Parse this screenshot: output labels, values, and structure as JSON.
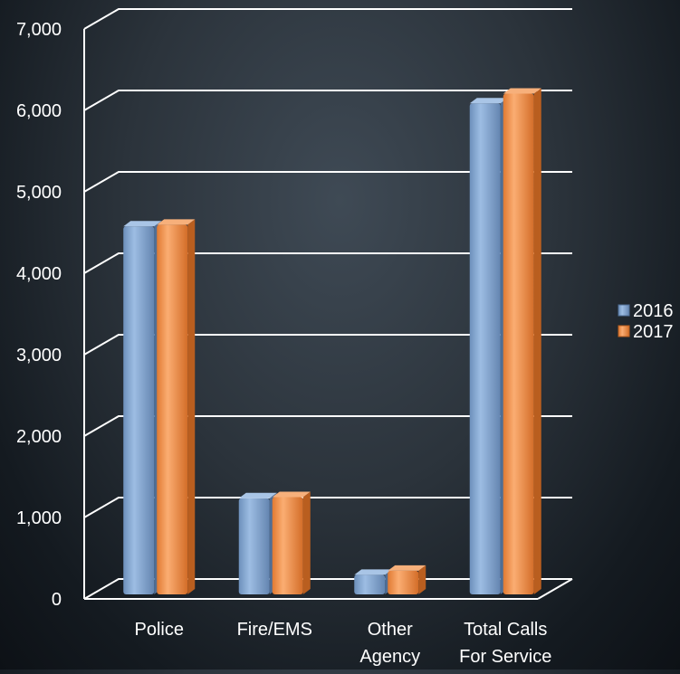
{
  "chart_data": {
    "type": "bar",
    "title": "",
    "xlabel": "",
    "ylabel": "",
    "categories": [
      [
        "Police"
      ],
      [
        "Fire/EMS"
      ],
      [
        "Other",
        "Agency"
      ],
      [
        "Total Calls",
        "For Service"
      ]
    ],
    "series": [
      {
        "name": "2016",
        "values": [
          4520,
          1180,
          240,
          6030
        ],
        "color": "#7ea3cf"
      },
      {
        "name": "2017",
        "values": [
          4540,
          1195,
          290,
          6150
        ],
        "color": "#ef8f48"
      }
    ],
    "ylim": [
      0,
      7000
    ],
    "yticks": [
      "0",
      "1,000",
      "2,000",
      "3,000",
      "4,000",
      "5,000",
      "6,000",
      "7,000"
    ],
    "grid": true,
    "legend_position": "right",
    "style": "3d-column"
  }
}
